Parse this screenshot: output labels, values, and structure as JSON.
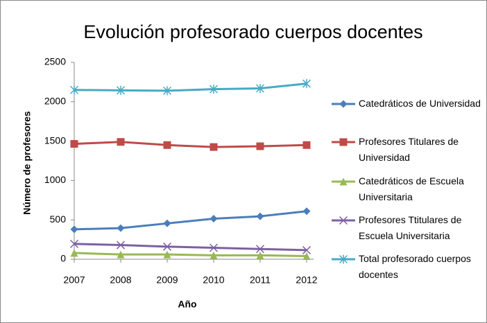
{
  "chart_data": {
    "type": "line",
    "title": "Evolución profesorado cuerpos docentes",
    "x_label": "Año",
    "y_label": "Número de profesores",
    "x": [
      2007,
      2008,
      2009,
      2010,
      2011,
      2012
    ],
    "xlim": [
      2007,
      2012
    ],
    "xticks": [
      2007,
      2008,
      2009,
      2010,
      2011,
      2012
    ],
    "ylim": [
      0,
      2500
    ],
    "yticks": [
      0,
      500,
      1000,
      1500,
      2000,
      2500
    ],
    "grid": false,
    "legend": "right",
    "series": [
      {
        "name": "Catedráticos de Universidad",
        "color": "#4a7ebb",
        "marker": "diamond",
        "values": [
          380,
          395,
          455,
          515,
          545,
          610
        ]
      },
      {
        "name": "Profesores Titulares de Universidad",
        "color": "#be4b48",
        "marker": "square",
        "values": [
          1465,
          1490,
          1450,
          1425,
          1435,
          1450
        ]
      },
      {
        "name": "Catedráticos de Escuela Universitaria",
        "color": "#98b954",
        "marker": "triangle",
        "values": [
          80,
          60,
          60,
          50,
          50,
          40
        ]
      },
      {
        "name": "Profesores Ttitulares de Escuela Universitaria",
        "color": "#7d60a0",
        "marker": "x",
        "values": [
          195,
          180,
          160,
          145,
          130,
          115
        ]
      },
      {
        "name": "Total profesorado cuerpos docentes",
        "color": "#46aac5",
        "marker": "star",
        "values": [
          2150,
          2145,
          2140,
          2160,
          2170,
          2230
        ]
      }
    ]
  }
}
